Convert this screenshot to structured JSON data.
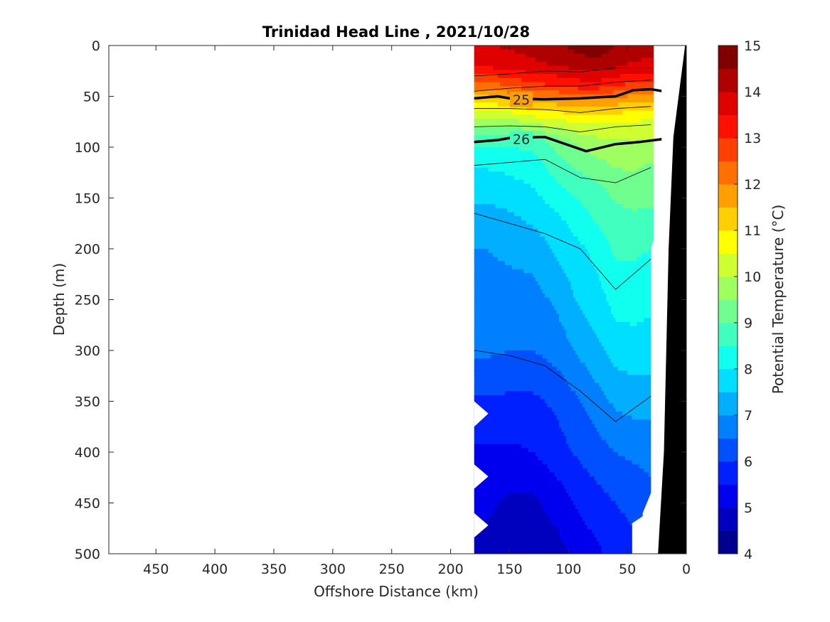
{
  "chart_data": {
    "type": "heatmap",
    "title": "Trinidad Head Line , 2021/10/28",
    "xlabel": "Offshore Distance (km)",
    "ylabel": "Depth (m)",
    "xlim": [
      490,
      0
    ],
    "ylim": [
      500,
      0
    ],
    "x_reversed": true,
    "y_reversed": true,
    "xticks": [
      450,
      400,
      350,
      300,
      250,
      200,
      150,
      100,
      50,
      0
    ],
    "yticks": [
      0,
      50,
      100,
      150,
      200,
      250,
      300,
      350,
      400,
      450,
      500
    ],
    "colorbar": {
      "label": "Potential Temperature (°C)",
      "min": 4,
      "max": 15,
      "ticks": [
        4,
        5,
        6,
        7,
        8,
        9,
        10,
        11,
        12,
        13,
        14,
        15
      ],
      "colors": [
        "#00008f",
        "#0000bf",
        "#0000ef",
        "#0020ff",
        "#0050ff",
        "#0080ff",
        "#00afff",
        "#00dfff",
        "#10ffef",
        "#40ffbf",
        "#70ff8f",
        "#9fff60",
        "#cfff30",
        "#ffff00",
        "#ffcf00",
        "#ff9f00",
        "#ff7000",
        "#ff4000",
        "#ff1000",
        "#df0000",
        "#af0000",
        "#800000"
      ]
    },
    "station_x_km": [
      180,
      170,
      150,
      130,
      110,
      90,
      75,
      60,
      45,
      30
    ],
    "depths_m": [
      0,
      5,
      20,
      40,
      55,
      75,
      95,
      115,
      140,
      170,
      200,
      250,
      300,
      350,
      400,
      450,
      500
    ],
    "temperature_profiles": [
      [
        13.9,
        13.9,
        13.6,
        12.2,
        11.1,
        9.9,
        8.6,
        8.1,
        7.7,
        7.3,
        7.0,
        6.8,
        6.6,
        5.9,
        5.4,
        5.1,
        4.8
      ],
      [
        13.9,
        13.9,
        13.6,
        12.2,
        11.1,
        9.9,
        8.6,
        8.1,
        7.7,
        7.3,
        7.0,
        6.8,
        6.6,
        5.9,
        5.4,
        5.1,
        4.8
      ],
      [
        14.1,
        14.0,
        13.7,
        12.5,
        11.3,
        9.8,
        8.6,
        8.2,
        7.8,
        7.4,
        7.1,
        6.8,
        6.5,
        5.9,
        5.4,
        4.9,
        4.7
      ],
      [
        14.2,
        14.1,
        13.9,
        12.8,
        11.6,
        10.1,
        8.7,
        8.3,
        8.0,
        7.6,
        7.2,
        6.8,
        6.5,
        5.9,
        5.5,
        4.9,
        4.6
      ],
      [
        14.4,
        14.3,
        14.0,
        13.0,
        11.7,
        10.3,
        9.2,
        8.8,
        8.4,
        7.9,
        7.6,
        7.1,
        6.7,
        6.1,
        5.8,
        5.2,
        4.8
      ],
      [
        14.7,
        14.6,
        14.2,
        13.2,
        11.9,
        10.6,
        9.6,
        9.2,
        8.7,
        8.3,
        7.9,
        7.6,
        7.1,
        6.5,
        6.1,
        5.6,
        5.2
      ],
      [
        14.8,
        14.7,
        14.3,
        13.2,
        11.9,
        10.6,
        9.8,
        9.4,
        8.9,
        8.6,
        8.2,
        7.8,
        7.4,
        6.8,
        6.3,
        5.8,
        5.4
      ],
      [
        14.5,
        14.4,
        14.1,
        13.0,
        11.7,
        10.5,
        9.9,
        9.6,
        9.2,
        8.8,
        8.6,
        8.2,
        7.7,
        7.1,
        6.5,
        6.0,
        5.8
      ],
      [
        14.3,
        14.2,
        13.9,
        12.8,
        11.5,
        10.5,
        10.0,
        9.6,
        9.3,
        8.9,
        8.6,
        8.2,
        7.8,
        7.2,
        6.6,
        6.1,
        5.9
      ],
      [
        14.2,
        14.1,
        13.9,
        12.8,
        11.5,
        10.4,
        9.9,
        9.5,
        9.2,
        8.9,
        8.5,
        8.1,
        7.8,
        7.2,
        6.7,
        6.3,
        6.0
      ]
    ],
    "sigma_theta_contours": {
      "labeled": [
        25,
        26
      ],
      "color": "#000000"
    },
    "bathymetry_color": "#000000"
  }
}
